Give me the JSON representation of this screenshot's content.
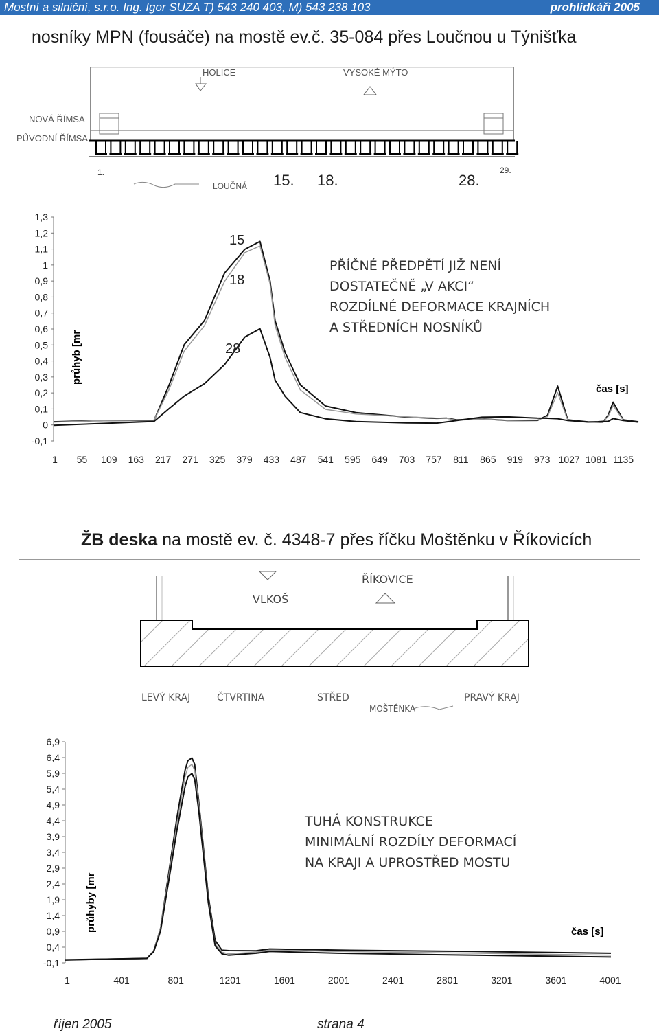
{
  "header": {
    "left": "Mostní a silniční, s.r.o. Ing. Igor SUZA T) 543 240 403, M) 543 238 103",
    "right": "prohlídkáři 2005"
  },
  "section1": {
    "title": "nosníky MPN (fousáče) na mostě ev.č. 35-084 přes Loučnou u Týnišťka",
    "drawing": {
      "direction_left": "HOLICE",
      "direction_right": "VYSOKÉ MÝTO",
      "label_new_cornice": "NOVÁ ŘÍMSA",
      "label_old_cornice": "PŮVODNÍ ŘÍMSA",
      "river": "LOUČNÁ",
      "beam_1": "1.",
      "beam_15": "15.",
      "beam_18": "18.",
      "beam_28": "28.",
      "beam_29": "29."
    },
    "note_lines": [
      "PŘÍČNÉ PŘEDPĚTÍ JIŽ NENÍ",
      "DOSTATEČNĚ „V AKCI“",
      "ROZDÍLNÉ DEFORMACE KRAJNÍCH",
      "A STŘEDNÍCH NOSNÍKŮ"
    ]
  },
  "section2": {
    "title_bold": "ŽB deska",
    "title_rest": " na mostě ev. č. 4348-7 přes říčku Moštěnku v Říkovicích",
    "drawing": {
      "direction_left": "VLKOŠ",
      "direction_right": "ŘÍKOVICE",
      "pos_left_edge": "LEVÝ KRAJ",
      "pos_quarter": "ČTVRTINA",
      "pos_center": "STŘED",
      "pos_right_edge": "PRAVÝ KRAJ",
      "river": "MOŠTĚNKA"
    },
    "note_lines": [
      "TUHÁ KONSTRUKCE",
      "MINIMÁLNÍ ROZDÍLY DEFORMACÍ",
      "NA KRAJI A UPROSTŘED MOSTU"
    ]
  },
  "footer": {
    "month": "říjen 2005",
    "page": "strana 4"
  },
  "chart_data": [
    {
      "type": "line",
      "ylabel": "průhyb [mr",
      "xlabel": "čas [s]",
      "ylim": [
        -0.1,
        1.3
      ],
      "yticks": [
        "1,3",
        "1,2",
        "1,1",
        "1",
        "0,9",
        "0,8",
        "0,7",
        "0,6",
        "0,5",
        "0,4",
        "0,3",
        "0,2",
        "0,1",
        "0",
        "-0,1"
      ],
      "xticks": [
        "1",
        "55",
        "109",
        "163",
        "217",
        "271",
        "325",
        "379",
        "433",
        "487",
        "541",
        "595",
        "649",
        "703",
        "757",
        "811",
        "865",
        "919",
        "973",
        "1027",
        "1081",
        "1135"
      ],
      "xlim": [
        1,
        1160
      ],
      "series": [
        {
          "name": "15",
          "x": [
            1,
            100,
            200,
            230,
            260,
            300,
            340,
            380,
            410,
            430,
            440,
            460,
            490,
            540,
            600,
            700,
            760,
            780,
            800,
            850,
            900,
            960,
            980,
            1000,
            1020,
            1060,
            1080,
            1090,
            1100,
            1110,
            1130,
            1160
          ],
          "y": [
            0.02,
            0.03,
            0.03,
            0.25,
            0.5,
            0.65,
            0.95,
            1.1,
            1.15,
            0.9,
            0.65,
            0.45,
            0.25,
            0.12,
            0.08,
            0.05,
            0.04,
            0.04,
            0.03,
            0.04,
            0.03,
            0.03,
            0.06,
            0.24,
            0.03,
            0.02,
            0.02,
            0.02,
            0.06,
            0.14,
            0.03,
            0.02
          ]
        },
        {
          "name": "18",
          "x": [
            1,
            100,
            200,
            230,
            260,
            300,
            340,
            380,
            410,
            430,
            440,
            460,
            490,
            540,
            600,
            700,
            760,
            780,
            800,
            850,
            900,
            960,
            980,
            1000,
            1020,
            1060,
            1080,
            1090,
            1100,
            1110,
            1130,
            1160
          ],
          "y": [
            0.02,
            0.03,
            0.03,
            0.22,
            0.46,
            0.62,
            0.9,
            1.08,
            1.12,
            0.88,
            0.62,
            0.42,
            0.22,
            0.1,
            0.07,
            0.05,
            0.04,
            0.04,
            0.03,
            0.04,
            0.03,
            0.03,
            0.05,
            0.2,
            0.03,
            0.02,
            0.02,
            0.02,
            0.05,
            0.12,
            0.03,
            0.02
          ]
        },
        {
          "name": "28",
          "x": [
            1,
            100,
            200,
            230,
            260,
            300,
            340,
            380,
            410,
            430,
            440,
            460,
            490,
            540,
            600,
            700,
            760,
            780,
            800,
            850,
            900,
            960,
            980,
            1000,
            1020,
            1060,
            1080,
            1090,
            1100,
            1110,
            1130,
            1160
          ],
          "y": [
            0.0,
            0.01,
            0.02,
            0.1,
            0.18,
            0.26,
            0.38,
            0.55,
            0.6,
            0.42,
            0.28,
            0.18,
            0.08,
            0.04,
            0.02,
            0.01,
            0.01,
            0.02,
            0.03,
            0.05,
            0.05,
            0.04,
            0.04,
            0.04,
            0.03,
            0.02,
            0.02,
            0.02,
            0.02,
            0.04,
            0.03,
            0.02
          ]
        }
      ]
    },
    {
      "type": "line",
      "ylabel": "průhyby [mr",
      "xlabel": "čas [s]",
      "ylim": [
        -0.1,
        6.9
      ],
      "yticks": [
        "6,9",
        "6,4",
        "5,9",
        "5,4",
        "4,9",
        "4,4",
        "3,9",
        "3,4",
        "2,9",
        "2,4",
        "1,9",
        "1,4",
        "0,9",
        "0,4",
        "-0,1"
      ],
      "xticks": [
        "1",
        "401",
        "801",
        "1201",
        "1601",
        "2001",
        "2401",
        "2801",
        "3201",
        "3601",
        "4001"
      ],
      "xlim": [
        1,
        4001
      ],
      "series": [
        {
          "x": [
            1,
            600,
            650,
            700,
            820,
            880,
            900,
            930,
            950,
            980,
            1050,
            1100,
            1150,
            1200,
            1400,
            1500,
            2000,
            3000,
            4001
          ],
          "y": [
            0.0,
            0.05,
            0.3,
            1.0,
            4.5,
            6.0,
            6.3,
            6.4,
            6.2,
            5.0,
            2.0,
            0.6,
            0.3,
            0.3,
            0.3,
            0.35,
            0.3,
            0.25,
            0.2
          ]
        },
        {
          "x": [
            1,
            600,
            650,
            700,
            820,
            880,
            900,
            930,
            950,
            980,
            1050,
            1100,
            1150,
            1200,
            1400,
            1500,
            2000,
            3000,
            4001
          ],
          "y": [
            0.0,
            0.05,
            0.3,
            1.0,
            4.3,
            5.8,
            6.1,
            6.2,
            6.0,
            4.9,
            1.9,
            0.5,
            0.25,
            0.2,
            0.25,
            0.3,
            0.25,
            0.2,
            0.15
          ]
        },
        {
          "x": [
            1,
            600,
            650,
            700,
            820,
            880,
            900,
            930,
            950,
            980,
            1050,
            1100,
            1150,
            1200,
            1400,
            1500,
            2000,
            3000,
            4001
          ],
          "y": [
            0.0,
            0.05,
            0.25,
            0.9,
            4.1,
            5.5,
            5.8,
            5.9,
            5.7,
            4.7,
            1.8,
            0.45,
            0.2,
            0.15,
            0.2,
            0.25,
            0.2,
            0.15,
            0.1
          ]
        }
      ]
    }
  ]
}
